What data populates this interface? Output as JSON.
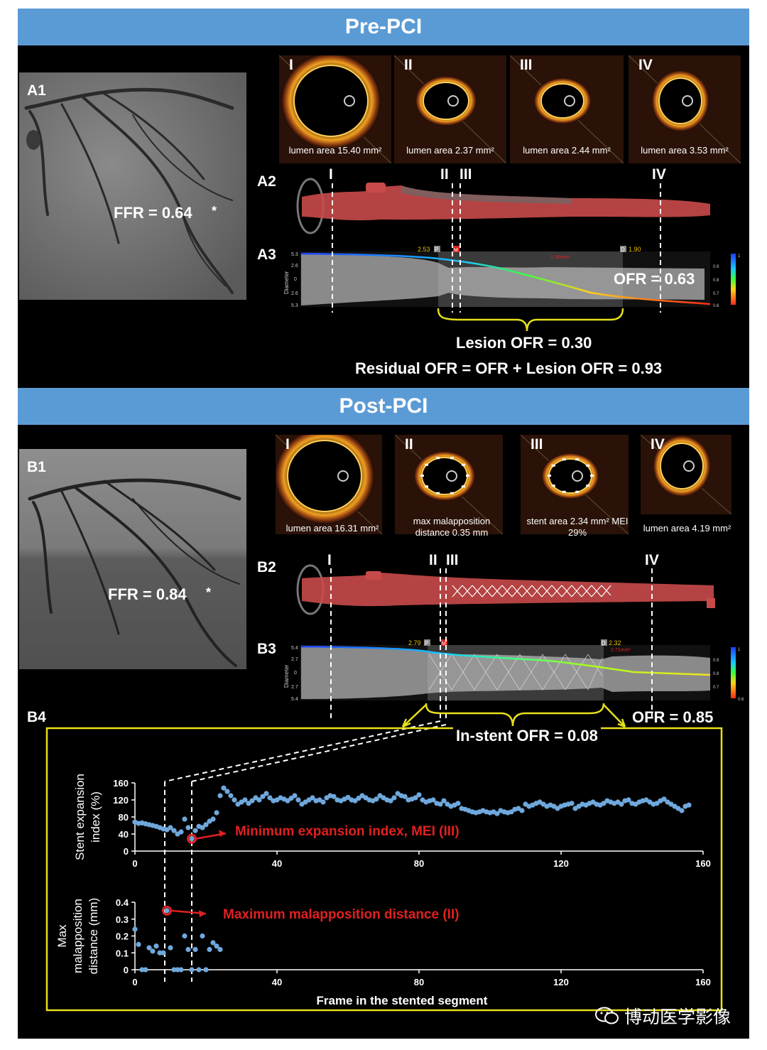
{
  "pre": {
    "header": "Pre-PCI",
    "a1_label": "A1",
    "a2_label": "A2",
    "a3_label": "A3",
    "ffr": "FFR = 0.64",
    "asterisk": "*",
    "oct": [
      {
        "roman": "I",
        "caption": "lumen area 15.40 mm²"
      },
      {
        "roman": "II",
        "caption": "lumen area 2.37 mm²"
      },
      {
        "roman": "III",
        "caption": "lumen area 2.44 mm²"
      },
      {
        "roman": "IV",
        "caption": "lumen area 3.53 mm²"
      }
    ],
    "markers": [
      "I",
      "II",
      "III",
      "IV"
    ],
    "ofr": "OFR = 0.63",
    "lesion_ofr": "Lesion OFR = 0.30",
    "residual_ofr": "Residual OFR = OFR + Lesion OFR = 0.93",
    "graph": {
      "y_ticks": [
        "5.3",
        "2.6",
        "0",
        "2.6",
        "5.3"
      ],
      "ylabel": "Diameter",
      "p_val": "2.53",
      "p_tag": "P",
      "m_tag": "M",
      "d_tag": "D",
      "d_val": "1.90",
      "mla": "1.38mm²",
      "scale": [
        "1",
        "0.9",
        "0.8",
        "0.7",
        "0.6"
      ]
    }
  },
  "post": {
    "header": "Post-PCI",
    "b1_label": "B1",
    "b2_label": "B2",
    "b3_label": "B3",
    "b4_label": "B4",
    "ffr": "FFR = 0.84",
    "asterisk": "*",
    "oct": [
      {
        "roman": "I",
        "caption": "lumen area 16.31 mm²"
      },
      {
        "roman": "II",
        "caption": "max malapposition distance 0.35 mm"
      },
      {
        "roman": "III",
        "caption": "stent area 2.34 mm² MEI 29%"
      },
      {
        "roman": "IV",
        "caption": "lumen area 4.19 mm²"
      }
    ],
    "markers": [
      "I",
      "II",
      "III",
      "IV"
    ],
    "ofr": "OFR = 0.85",
    "instent_ofr": "In-stent OFR = 0.08",
    "graph": {
      "y_ticks": [
        "5.4",
        "2.7",
        "0",
        "2.7",
        "5.4"
      ],
      "ylabel": "Diameter",
      "p_val": "2.79",
      "p_tag": "P",
      "m_tag": "M",
      "d_tag": "D",
      "d_val": "2.32",
      "mla": "2.71mm²",
      "scale": [
        "1",
        "0.9",
        "0.8",
        "0.7",
        "0.6"
      ]
    }
  },
  "chart_data": [
    {
      "type": "scatter",
      "ylabel": "Stent expansion index (%)",
      "xlabel": "",
      "xlim": [
        0,
        160
      ],
      "ylim": [
        0,
        160
      ],
      "x_ticks": [
        "0",
        "40",
        "80",
        "120",
        "160"
      ],
      "y_ticks": [
        "0",
        "40",
        "80",
        "120",
        "160"
      ],
      "annotation": "Minimum expansion index, MEI (III)",
      "highlight": {
        "x": 16,
        "y": 29
      },
      "series": [
        {
          "values": [
            [
              0,
              68
            ],
            [
              1,
              65
            ],
            [
              2,
              66
            ],
            [
              3,
              64
            ],
            [
              4,
              62
            ],
            [
              5,
              60
            ],
            [
              6,
              58
            ],
            [
              7,
              55
            ],
            [
              8,
              52
            ],
            [
              9,
              50
            ],
            [
              10,
              55
            ],
            [
              11,
              48
            ],
            [
              12,
              40
            ],
            [
              13,
              45
            ],
            [
              14,
              75
            ],
            [
              15,
              55
            ],
            [
              16,
              29
            ],
            [
              17,
              48
            ],
            [
              18,
              58
            ],
            [
              19,
              55
            ],
            [
              20,
              62
            ],
            [
              21,
              70
            ],
            [
              22,
              75
            ],
            [
              23,
              90
            ],
            [
              24,
              130
            ],
            [
              25,
              148
            ],
            [
              26,
              140
            ],
            [
              27,
              130
            ],
            [
              28,
              120
            ],
            [
              29,
              110
            ],
            [
              30,
              115
            ],
            [
              31,
              120
            ],
            [
              32,
              112
            ],
            [
              33,
              118
            ],
            [
              34,
              125
            ],
            [
              35,
              120
            ],
            [
              36,
              128
            ],
            [
              37,
              135
            ],
            [
              38,
              125
            ],
            [
              39,
              118
            ],
            [
              40,
              120
            ],
            [
              41,
              125
            ],
            [
              42,
              122
            ],
            [
              43,
              118
            ],
            [
              44,
              124
            ],
            [
              45,
              130
            ],
            [
              46,
              120
            ],
            [
              47,
              110
            ],
            [
              48,
              115
            ],
            [
              49,
              120
            ],
            [
              50,
              125
            ],
            [
              51,
              118
            ],
            [
              52,
              120
            ],
            [
              53,
              115
            ],
            [
              54,
              125
            ],
            [
              55,
              130
            ],
            [
              56,
              128
            ],
            [
              57,
              120
            ],
            [
              58,
              118
            ],
            [
              59,
              122
            ],
            [
              60,
              126
            ],
            [
              61,
              120
            ],
            [
              62,
              118
            ],
            [
              63,
              124
            ],
            [
              64,
              130
            ],
            [
              65,
              125
            ],
            [
              66,
              120
            ],
            [
              67,
              118
            ],
            [
              68,
              122
            ],
            [
              69,
              130
            ],
            [
              70,
              125
            ],
            [
              71,
              120
            ],
            [
              72,
              118
            ],
            [
              73,
              125
            ],
            [
              74,
              135
            ],
            [
              75,
              130
            ],
            [
              76,
              128
            ],
            [
              77,
              120
            ],
            [
              78,
              122
            ],
            [
              79,
              125
            ],
            [
              80,
              132
            ],
            [
              81,
              120
            ],
            [
              82,
              115
            ],
            [
              83,
              118
            ],
            [
              84,
              120
            ],
            [
              85,
              112
            ],
            [
              86,
              110
            ],
            [
              87,
              118
            ],
            [
              88,
              110
            ],
            [
              89,
              105
            ],
            [
              90,
              108
            ],
            [
              91,
              112
            ],
            [
              92,
              100
            ],
            [
              93,
              98
            ],
            [
              94,
              95
            ],
            [
              95,
              92
            ],
            [
              96,
              90
            ],
            [
              97,
              92
            ],
            [
              98,
              95
            ],
            [
              99,
              92
            ],
            [
              100,
              90
            ],
            [
              101,
              92
            ],
            [
              102,
              88
            ],
            [
              103,
              95
            ],
            [
              104,
              92
            ],
            [
              105,
              90
            ],
            [
              106,
              92
            ],
            [
              107,
              98
            ],
            [
              108,
              100
            ],
            [
              109,
              95
            ],
            [
              110,
              110
            ],
            [
              111,
              105
            ],
            [
              112,
              108
            ],
            [
              113,
              112
            ],
            [
              114,
              115
            ],
            [
              115,
              110
            ],
            [
              116,
              105
            ],
            [
              117,
              108
            ],
            [
              118,
              105
            ],
            [
              119,
              100
            ],
            [
              120,
              105
            ],
            [
              121,
              108
            ],
            [
              122,
              110
            ],
            [
              123,
              112
            ],
            [
              124,
              100
            ],
            [
              125,
              105
            ],
            [
              126,
              110
            ],
            [
              127,
              108
            ],
            [
              128,
              112
            ],
            [
              129,
              115
            ],
            [
              130,
              110
            ],
            [
              131,
              108
            ],
            [
              132,
              112
            ],
            [
              133,
              118
            ],
            [
              134,
              115
            ],
            [
              135,
              112
            ],
            [
              136,
              115
            ],
            [
              137,
              110
            ],
            [
              138,
              118
            ],
            [
              139,
              120
            ],
            [
              140,
              112
            ],
            [
              141,
              110
            ],
            [
              142,
              115
            ],
            [
              143,
              118
            ],
            [
              144,
              120
            ],
            [
              145,
              115
            ],
            [
              146,
              110
            ],
            [
              147,
              112
            ],
            [
              148,
              118
            ],
            [
              149,
              122
            ],
            [
              150,
              115
            ],
            [
              151,
              110
            ],
            [
              152,
              105
            ],
            [
              153,
              100
            ],
            [
              154,
              95
            ],
            [
              155,
              105
            ],
            [
              156,
              108
            ]
          ]
        }
      ]
    },
    {
      "type": "scatter",
      "ylabel": "Max malapposition distance (mm)",
      "xlabel": "Frame in the stented segment",
      "xlim": [
        0,
        160
      ],
      "ylim": [
        0,
        0.4
      ],
      "x_ticks": [
        "0",
        "40",
        "80",
        "120",
        "160"
      ],
      "y_ticks": [
        "0",
        "0.1",
        "0.2",
        "0.3",
        "0.4"
      ],
      "annotation": "Maximum malapposition distance (II)",
      "highlight": {
        "x": 9,
        "y": 0.35
      },
      "series": [
        {
          "values": [
            [
              0,
              0.24
            ],
            [
              1,
              0.15
            ],
            [
              2,
              0
            ],
            [
              3,
              0
            ],
            [
              4,
              0.13
            ],
            [
              5,
              0.11
            ],
            [
              6,
              0.14
            ],
            [
              7,
              0.1
            ],
            [
              8,
              0.1
            ],
            [
              9,
              0.35
            ],
            [
              10,
              0.13
            ],
            [
              11,
              0
            ],
            [
              12,
              0
            ],
            [
              13,
              0
            ],
            [
              14,
              0.2
            ],
            [
              15,
              0.12
            ],
            [
              16,
              0
            ],
            [
              17,
              0.12
            ],
            [
              18,
              0
            ],
            [
              19,
              0.2
            ],
            [
              20,
              0
            ],
            [
              21,
              0.12
            ],
            [
              22,
              0.16
            ],
            [
              23,
              0.14
            ],
            [
              24,
              0.12
            ]
          ]
        }
      ]
    }
  ],
  "watermark": "博动医学影像",
  "colors": {
    "header_bg": "#5b9bd5",
    "panel_bg": "#000000",
    "highlight": "#e02020",
    "bracket": "#e6e01a",
    "points": "#6fa8dc"
  }
}
